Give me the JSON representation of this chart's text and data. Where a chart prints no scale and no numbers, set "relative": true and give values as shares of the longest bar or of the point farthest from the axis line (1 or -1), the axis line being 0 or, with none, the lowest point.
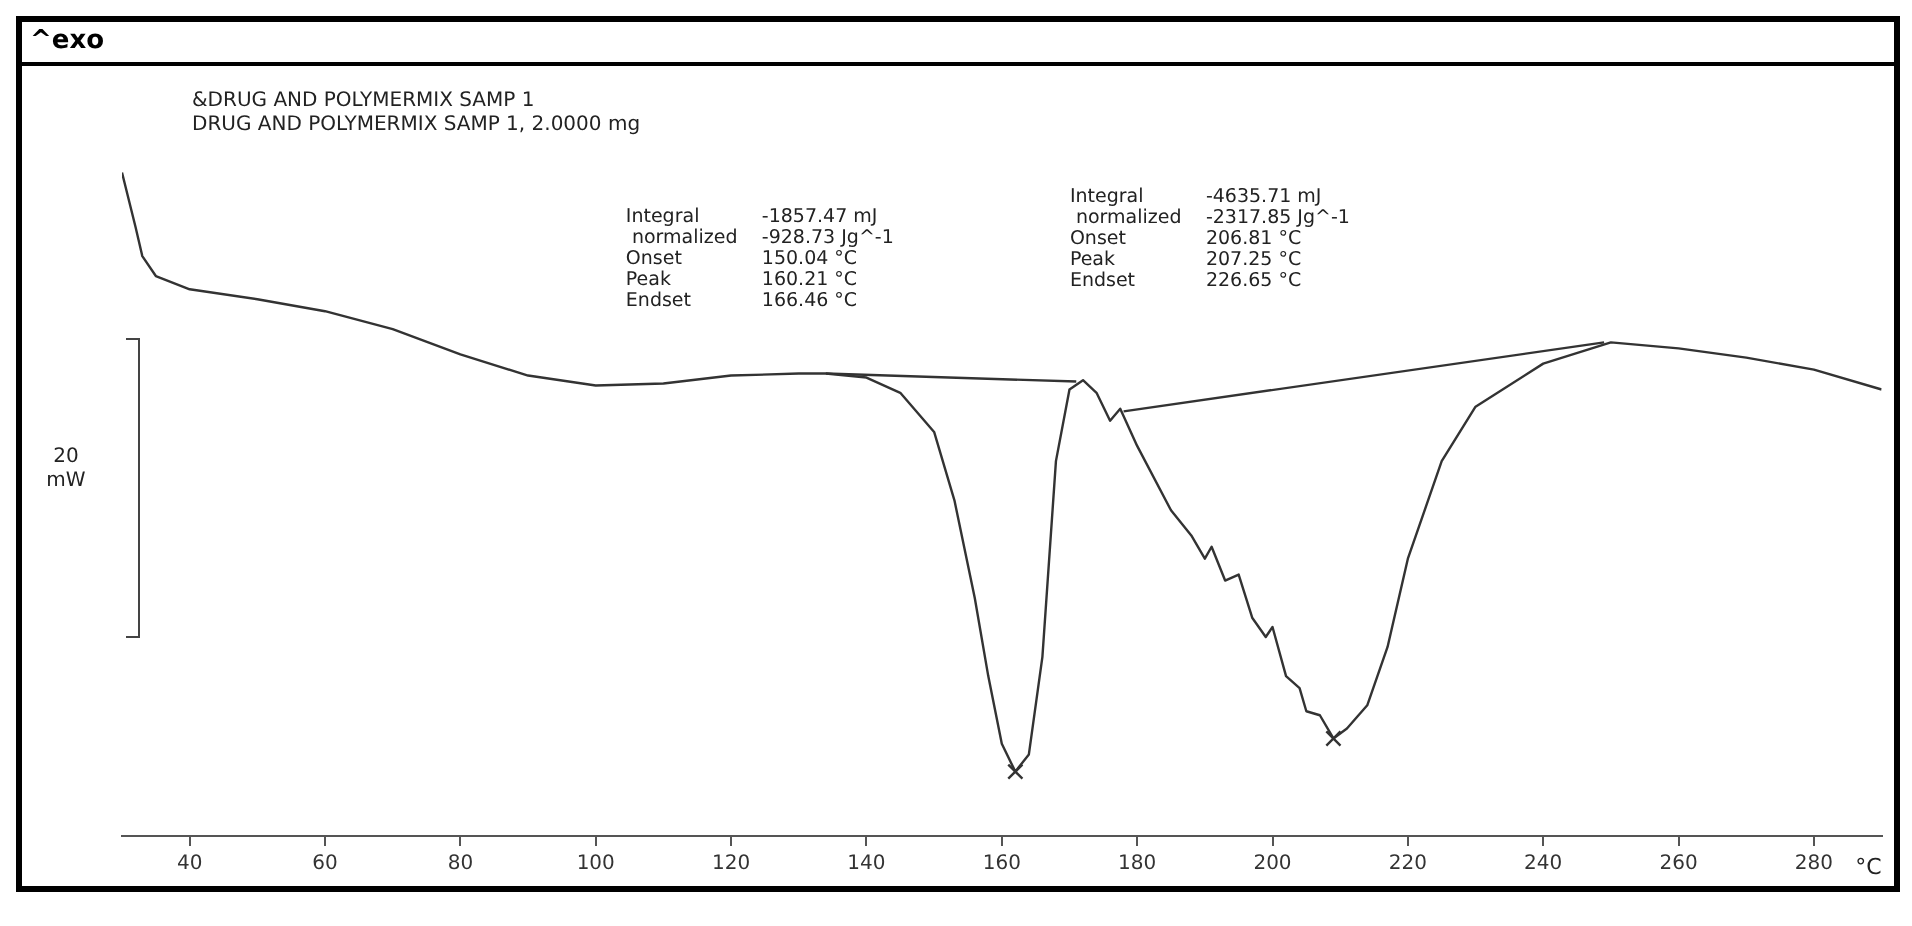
{
  "chart_data": {
    "type": "line",
    "relative": true,
    "title": "&DRUG AND POLYMERMIX SAMP 1",
    "subtitle": "DRUG AND POLYMERMIX SAMP 1, 2.0000 mg",
    "xlabel": "°C",
    "xlim": [
      30,
      290
    ],
    "xticks": [
      40,
      60,
      80,
      100,
      120,
      140,
      160,
      180,
      200,
      220,
      240,
      260,
      280
    ],
    "grid": false,
    "legend": false,
    "annotations": [
      "^exo",
      "20 mW",
      "Integral  -1857.47 mJ",
      " normalized  -928.73 Jg^-1",
      "Onset  150.04 °C",
      "Peak  160.21 °C",
      "Endset  166.46 °C",
      "Integral  -4635.71 mJ",
      " normalized  -2317.85 Jg^-1",
      "Onset  206.81 °C",
      "Peak  207.25 °C",
      "Endset  226.65 °C"
    ],
    "series": [
      {
        "type": "line",
        "color": "#333333",
        "x": [
          30,
          32,
          33,
          35,
          40,
          50,
          60,
          70,
          80,
          90,
          100,
          110,
          120,
          130,
          134,
          140,
          145,
          150,
          153,
          156,
          158,
          160,
          162,
          164,
          166,
          168,
          170,
          172,
          174,
          176,
          177.5,
          180,
          185,
          188,
          190,
          191,
          193,
          195,
          197,
          199,
          200,
          202,
          204,
          205,
          207,
          209,
          211,
          214,
          217,
          220,
          225,
          230,
          240,
          250,
          260,
          270,
          280,
          290
        ],
        "values": [
          1.0,
          0.918,
          0.874,
          0.844,
          0.824,
          0.809,
          0.791,
          0.764,
          0.726,
          0.694,
          0.679,
          0.682,
          0.694,
          0.697,
          0.697,
          0.691,
          0.668,
          0.609,
          0.506,
          0.359,
          0.241,
          0.139,
          0.097,
          0.123,
          0.27,
          0.565,
          0.673,
          0.687,
          0.668,
          0.626,
          0.644,
          0.588,
          0.491,
          0.453,
          0.418,
          0.436,
          0.385,
          0.394,
          0.329,
          0.3,
          0.315,
          0.241,
          0.223,
          0.188,
          0.182,
          0.147,
          0.162,
          0.197,
          0.285,
          0.418,
          0.565,
          0.647,
          0.712,
          0.744,
          0.735,
          0.721,
          0.703,
          0.673
        ]
      },
      {
        "type": "line",
        "color": "#333333",
        "x": [
          134,
          171
        ],
        "values": [
          0.697,
          0.685
        ]
      },
      {
        "type": "line",
        "color": "#333333",
        "x": [
          178,
          249
        ],
        "values": [
          0.64,
          0.744
        ]
      },
      {
        "type": "scatter",
        "color": "#333333",
        "marker": "cross",
        "x": [
          162,
          209
        ],
        "values": [
          0.097,
          0.147
        ]
      }
    ]
  }
}
